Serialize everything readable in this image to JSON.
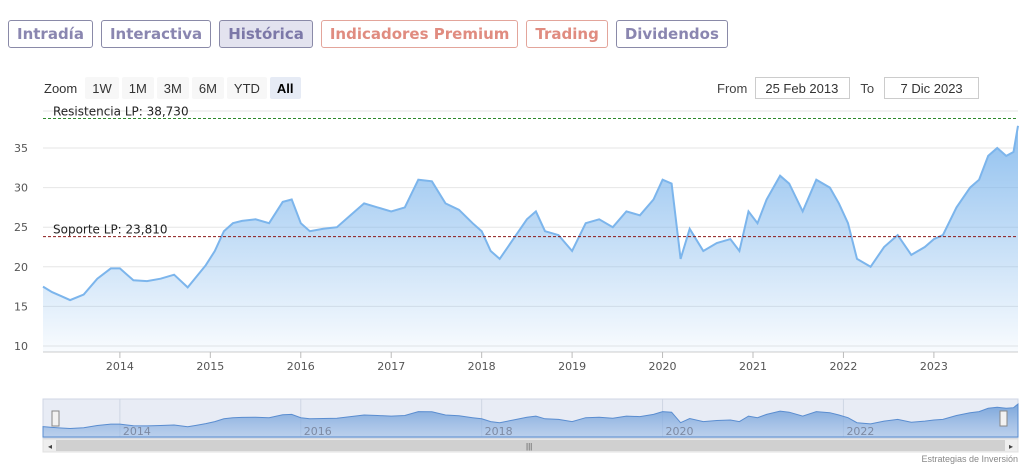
{
  "tabs": [
    {
      "label": "Intradía",
      "state": "normal"
    },
    {
      "label": "Interactiva",
      "state": "normal"
    },
    {
      "label": "Histórica",
      "state": "active"
    },
    {
      "label": "Indicadores Premium",
      "state": "premium"
    },
    {
      "label": "Trading",
      "state": "premium"
    },
    {
      "label": "Dividendos",
      "state": "normal"
    }
  ],
  "zoom": {
    "label": "Zoom",
    "buttons": [
      "1W",
      "1M",
      "3M",
      "6M",
      "YTD",
      "All"
    ],
    "selected": "All"
  },
  "range": {
    "from_label": "From",
    "from_value": "25 Feb 2013",
    "to_label": "To",
    "to_value": "7 Dic 2023"
  },
  "credit": "Estrategias de Inversión",
  "colors": {
    "line": "#7cb5ec",
    "fill_top": "#7cb5ec",
    "resistance": "#2e8b2e",
    "support": "#8b1a1a"
  },
  "chart_data": {
    "type": "area",
    "title": "",
    "xlabel": "",
    "ylabel": "",
    "ylim": [
      10,
      38.73
    ],
    "yticks": [
      10,
      15,
      20,
      25,
      30,
      35
    ],
    "xlim": [
      2013.15,
      2023.93
    ],
    "xticks": [
      "2014",
      "2015",
      "2016",
      "2017",
      "2018",
      "2019",
      "2020",
      "2021",
      "2022",
      "2023"
    ],
    "grid": true,
    "lines": [
      {
        "label": "Resistencia LP: 38,730",
        "value": 38.73,
        "style": "dashed",
        "color": "#2e8b2e"
      },
      {
        "label": "Soporte LP: 23,810",
        "value": 23.81,
        "style": "dashed",
        "color": "#8b1a1a"
      }
    ],
    "navigator": {
      "ticks": [
        "2014",
        "2016",
        "2018",
        "2020",
        "2022"
      ]
    },
    "series": [
      {
        "x": [
          2013.15,
          2013.25,
          2013.35,
          2013.45,
          2013.6,
          2013.75,
          2013.9,
          2014.0,
          2014.15,
          2014.3,
          2014.45,
          2014.6,
          2014.75,
          2014.85,
          2014.95,
          2015.05,
          2015.15,
          2015.25,
          2015.35,
          2015.5,
          2015.65,
          2015.8,
          2015.9,
          2016.0,
          2016.1,
          2016.25,
          2016.4,
          2016.55,
          2016.7,
          2016.85,
          2017.0,
          2017.15,
          2017.3,
          2017.45,
          2017.6,
          2017.75,
          2017.9,
          2018.0,
          2018.1,
          2018.2,
          2018.35,
          2018.5,
          2018.6,
          2018.7,
          2018.85,
          2019.0,
          2019.15,
          2019.3,
          2019.45,
          2019.6,
          2019.75,
          2019.9,
          2020.0,
          2020.1,
          2020.2,
          2020.3,
          2020.45,
          2020.6,
          2020.75,
          2020.85,
          2020.95,
          2021.05,
          2021.15,
          2021.3,
          2021.4,
          2021.55,
          2021.7,
          2021.85,
          2021.95,
          2022.05,
          2022.15,
          2022.3,
          2022.45,
          2022.6,
          2022.75,
          2022.9,
          2023.0,
          2023.1,
          2023.25,
          2023.4,
          2023.5,
          2023.6,
          2023.7,
          2023.8,
          2023.88,
          2023.93
        ],
        "y": [
          17.5,
          16.8,
          16.3,
          15.8,
          16.5,
          18.5,
          19.8,
          19.8,
          18.3,
          18.2,
          18.5,
          19.0,
          17.4,
          18.8,
          20.2,
          22.0,
          24.5,
          25.5,
          25.8,
          26.0,
          25.5,
          28.2,
          28.5,
          25.5,
          24.5,
          24.8,
          25.0,
          26.5,
          28.0,
          27.5,
          27.0,
          27.5,
          31.0,
          30.8,
          28.0,
          27.2,
          25.5,
          24.5,
          22.0,
          21.0,
          23.5,
          26.0,
          27.0,
          24.5,
          24.0,
          22.0,
          25.5,
          26.0,
          25.0,
          27.0,
          26.5,
          28.5,
          31.0,
          30.5,
          21.0,
          24.8,
          22.0,
          23.0,
          23.5,
          22.0,
          27.0,
          25.5,
          28.5,
          31.5,
          30.5,
          27.0,
          31.0,
          30.0,
          28.0,
          25.5,
          21.0,
          20.0,
          22.5,
          24.0,
          21.5,
          22.5,
          23.5,
          24.0,
          27.5,
          30.0,
          31.0,
          34.0,
          35.0,
          34.0,
          34.5,
          37.8
        ]
      }
    ]
  }
}
